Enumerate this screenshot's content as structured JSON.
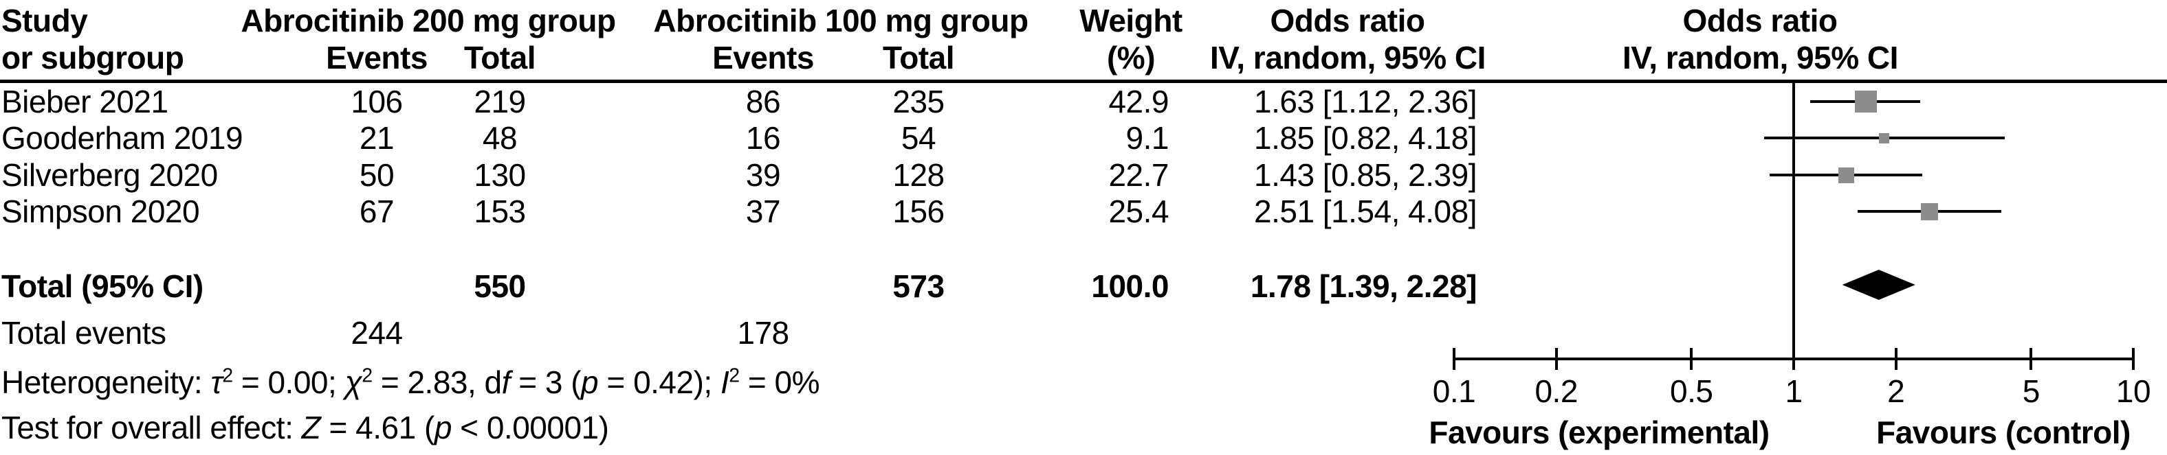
{
  "colors": {
    "marker_gray": "#8c8c8c",
    "diamond_black": "#000000",
    "line_black": "#000000",
    "background": "#ffffff"
  },
  "header": {
    "study1": "Study",
    "study2": "or subgroup",
    "group1": "Abrocitinib 200 mg group",
    "group2": "Abrocitinib 100 mg group",
    "events": "Events",
    "total": "Total",
    "weight1": "Weight",
    "weight2": "(%)",
    "or1": "Odds ratio",
    "or2": "IV, random, 95% CI"
  },
  "total_row_label": "Total (95% CI)",
  "total_events_label": "Total events",
  "stats": {
    "heterogeneity": {
      "pre": "Heterogeneity: ",
      "tau": "τ",
      "sup1": "2",
      "mid1": " = 0.00; ",
      "chi": "χ",
      "sup2": "2",
      "mid2": " = 2.83, d",
      "f": "f",
      "mid3": " = 3 (",
      "p": "p",
      "mid4": " = 0.42); ",
      "I": "I",
      "sup3": "2",
      "end": " = 0%"
    },
    "overall": {
      "pre": "Test for overall effect: ",
      "Z": "Z",
      "mid": " = 4.61 (",
      "p": "p",
      "end": " < 0.00001)"
    }
  },
  "chart_data": {
    "type": "forest",
    "effect_measure": "Odds ratio, IV, random, 95% CI",
    "x_scale": "log",
    "xlim": [
      0.1,
      10
    ],
    "x_ticks": [
      0.1,
      0.2,
      0.5,
      1,
      2,
      5,
      10
    ],
    "x_tick_labels": [
      "0.1",
      "0.2",
      "0.5",
      "1",
      "2",
      "5",
      "10"
    ],
    "null_line": 1,
    "favours_left": "Favours (experimental)",
    "favours_right": "Favours (control)",
    "studies": [
      {
        "name": "Bieber 2021",
        "events1": 106,
        "total1": 219,
        "events2": 86,
        "total2": 235,
        "weight": "42.9",
        "or": 1.63,
        "ci_low": 1.12,
        "ci_high": 2.36,
        "or_label": "1.63 [1.12, 2.36]"
      },
      {
        "name": "Gooderham 2019",
        "events1": 21,
        "total1": 48,
        "events2": 16,
        "total2": 54,
        "weight": "9.1",
        "or": 1.85,
        "ci_low": 0.82,
        "ci_high": 4.18,
        "or_label": "1.85 [0.82, 4.18]"
      },
      {
        "name": "Silverberg 2020",
        "events1": 50,
        "total1": 130,
        "events2": 39,
        "total2": 128,
        "weight": "22.7",
        "or": 1.43,
        "ci_low": 0.85,
        "ci_high": 2.39,
        "or_label": "1.43 [0.85, 2.39]"
      },
      {
        "name": "Simpson 2020",
        "events1": 67,
        "total1": 153,
        "events2": 37,
        "total2": 156,
        "weight": "25.4",
        "or": 2.51,
        "ci_low": 1.54,
        "ci_high": 4.08,
        "or_label": "2.51 [1.54, 4.08]"
      }
    ],
    "total": {
      "total1": 550,
      "total2": 573,
      "weight": "100.0",
      "or": 1.78,
      "ci_low": 1.39,
      "ci_high": 2.28,
      "or_label": "1.78 [1.39, 2.28]"
    },
    "total_events": {
      "events1": 244,
      "events2": 178
    }
  }
}
